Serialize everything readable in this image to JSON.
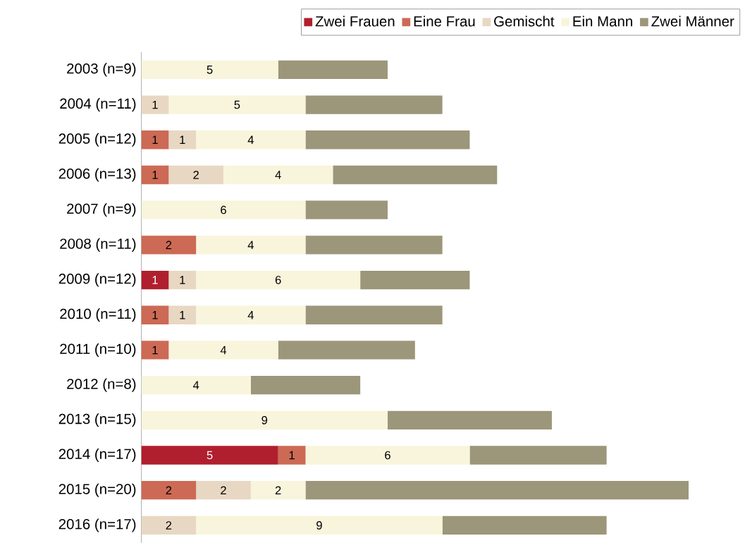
{
  "chart_data": {
    "type": "bar",
    "orientation": "horizontal",
    "stacked": true,
    "legend": "top right",
    "categories": [
      "2003 (n=9)",
      "2004 (n=11)",
      "2005 (n=12)",
      "2006 (n=13)",
      "2007 (n=9)",
      "2008 (n=11)",
      "2009 (n=12)",
      "2010 (n=11)",
      "2011 (n=10)",
      "2012 (n=8)",
      "2013 (n=15)",
      "2014 (n=17)",
      "2015 (n=20)",
      "2016 (n=17)"
    ],
    "series": [
      {
        "name": "Zwei Frauen",
        "color": "#b01f2e",
        "values": [
          0,
          0,
          0,
          0,
          0,
          0,
          1,
          0,
          0,
          0,
          0,
          5,
          0,
          0
        ],
        "value_labels": [
          null,
          null,
          null,
          null,
          null,
          null,
          "1",
          null,
          null,
          null,
          null,
          "5",
          null,
          null
        ]
      },
      {
        "name": "Eine Frau",
        "color": "#cc6a55",
        "values": [
          0,
          0,
          1,
          1,
          0,
          2,
          0,
          1,
          1,
          0,
          0,
          1,
          2,
          0
        ],
        "value_labels": [
          null,
          null,
          "1",
          "1",
          null,
          "2",
          null,
          "1",
          "1",
          null,
          null,
          "1",
          "2",
          null
        ]
      },
      {
        "name": "Gemischt",
        "color": "#e8d8c3",
        "values": [
          0,
          1,
          1,
          2,
          0,
          0,
          1,
          1,
          0,
          0,
          0,
          0,
          2,
          2
        ],
        "value_labels": [
          null,
          "1",
          "1",
          "2",
          null,
          null,
          "1",
          "1",
          null,
          null,
          null,
          null,
          "2",
          "2"
        ]
      },
      {
        "name": "Ein Mann",
        "color": "#f8f5dc",
        "values": [
          5,
          5,
          4,
          4,
          6,
          4,
          6,
          4,
          4,
          4,
          9,
          6,
          2,
          9
        ],
        "value_labels": [
          "5",
          "5",
          "4",
          "4",
          "6",
          "4",
          "6",
          "4",
          "4",
          "4",
          "9",
          "6",
          "2",
          "9"
        ]
      },
      {
        "name": "Zwei Männer",
        "color": "#9c967a",
        "values": [
          4,
          5,
          6,
          6,
          3,
          5,
          4,
          5,
          5,
          4,
          6,
          5,
          14,
          6
        ]
      }
    ]
  }
}
